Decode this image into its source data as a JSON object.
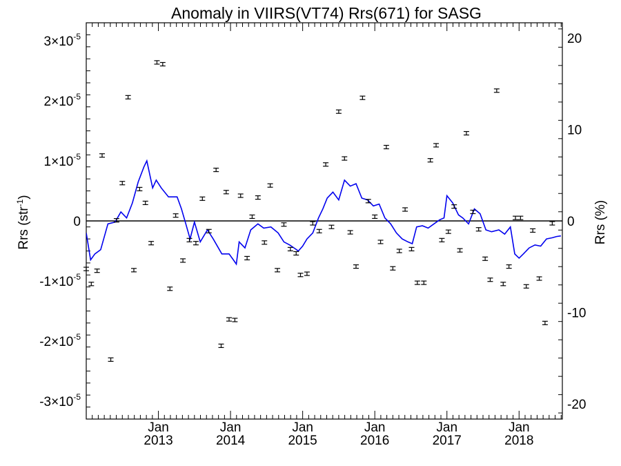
{
  "chart_data": {
    "type": "scatter",
    "title": "Anomaly in VIIRS(VT74) Rrs(671) for SASG",
    "ylabel": "Rrs (str",
    "ylabel_unit_sup": "-1",
    "ylabel_close": ")",
    "y2label": "Rrs (%)",
    "xlim": [
      2012.0,
      2018.6
    ],
    "ylim": [
      -3.3e-05,
      3.3e-05
    ],
    "y2lim": [
      -21.67,
      21.67
    ],
    "grid": false,
    "zero_line": true,
    "y_ticks": [
      {
        "value": -3e-05,
        "mant": "-3×10",
        "exp": "-5"
      },
      {
        "value": -2e-05,
        "mant": "-2×10",
        "exp": "-5"
      },
      {
        "value": -1e-05,
        "mant": "-1×10",
        "exp": "-5"
      },
      {
        "value": 0,
        "mant": "0",
        "exp": ""
      },
      {
        "value": 1e-05,
        "mant": "1×10",
        "exp": "-5"
      },
      {
        "value": 2e-05,
        "mant": "2×10",
        "exp": "-5"
      },
      {
        "value": 3e-05,
        "mant": "3×10",
        "exp": "-5"
      }
    ],
    "y2_ticks": [
      {
        "value": -20,
        "label": "-20"
      },
      {
        "value": -10,
        "label": "-10"
      },
      {
        "value": 0,
        "label": "0"
      },
      {
        "value": 10,
        "label": "10"
      },
      {
        "value": 20,
        "label": "20"
      }
    ],
    "x_ticks": [
      {
        "value": 2013.0,
        "month": "Jan",
        "year": "2013"
      },
      {
        "value": 2014.0,
        "month": "Jan",
        "year": "2014"
      },
      {
        "value": 2015.0,
        "month": "Jan",
        "year": "2015"
      },
      {
        "value": 2016.0,
        "month": "Jan",
        "year": "2016"
      },
      {
        "value": 2017.0,
        "month": "Jan",
        "year": "2017"
      },
      {
        "value": 2018.0,
        "month": "Jan",
        "year": "2018"
      }
    ],
    "x_minor_step": 0.0833333,
    "series": [
      {
        "style": "points_with_error_bars",
        "color": "#000000",
        "points": [
          {
            "x": 2012.0,
            "y": -8e-06
          },
          {
            "x": 2012.07,
            "y": -1.05e-05
          },
          {
            "x": 2012.15,
            "y": -8.3e-06
          },
          {
            "x": 2012.22,
            "y": 1.09e-05
          },
          {
            "x": 2012.34,
            "y": -2.31e-05
          },
          {
            "x": 2012.42,
            "y": 1e-07
          },
          {
            "x": 2012.5,
            "y": 6.3e-06
          },
          {
            "x": 2012.58,
            "y": 2.06e-05
          },
          {
            "x": 2012.66,
            "y": -8.2e-06
          },
          {
            "x": 2012.74,
            "y": 5.3e-06
          },
          {
            "x": 2012.82,
            "y": 3e-06
          },
          {
            "x": 2012.9,
            "y": -3.7e-06
          },
          {
            "x": 2012.98,
            "y": 2.64e-05
          },
          {
            "x": 2013.06,
            "y": 2.61e-05
          },
          {
            "x": 2013.16,
            "y": -1.13e-05
          },
          {
            "x": 2013.24,
            "y": 9e-07
          },
          {
            "x": 2013.34,
            "y": -6.6e-06
          },
          {
            "x": 2013.43,
            "y": -3.2e-06
          },
          {
            "x": 2013.52,
            "y": -3.7e-06
          },
          {
            "x": 2013.61,
            "y": 3.7e-06
          },
          {
            "x": 2013.7,
            "y": -1.7e-06
          },
          {
            "x": 2013.8,
            "y": 8.5e-06
          },
          {
            "x": 2013.87,
            "y": -2.08e-05
          },
          {
            "x": 2013.94,
            "y": 4.8e-06
          },
          {
            "x": 2013.98,
            "y": -1.64e-05
          },
          {
            "x": 2014.06,
            "y": -1.65e-05
          },
          {
            "x": 2014.14,
            "y": 4.2e-06
          },
          {
            "x": 2014.23,
            "y": -6.2e-06
          },
          {
            "x": 2014.3,
            "y": 7e-07
          },
          {
            "x": 2014.38,
            "y": 3.9e-06
          },
          {
            "x": 2014.47,
            "y": -3.6e-06
          },
          {
            "x": 2014.55,
            "y": 5.9e-06
          },
          {
            "x": 2014.65,
            "y": -8.2e-06
          },
          {
            "x": 2014.74,
            "y": -6e-07
          },
          {
            "x": 2014.83,
            "y": -4.7e-06
          },
          {
            "x": 2014.91,
            "y": -5.4e-06
          },
          {
            "x": 2014.97,
            "y": -9e-06
          },
          {
            "x": 2015.06,
            "y": -8.8e-06
          },
          {
            "x": 2015.14,
            "y": -4e-07
          },
          {
            "x": 2015.23,
            "y": -1.7e-06
          },
          {
            "x": 2015.32,
            "y": 9.4e-06
          },
          {
            "x": 2015.4,
            "y": -1e-06
          },
          {
            "x": 2015.5,
            "y": 1.82e-05
          },
          {
            "x": 2015.58,
            "y": 1.04e-05
          },
          {
            "x": 2015.66,
            "y": -1.9e-06
          },
          {
            "x": 2015.74,
            "y": -7.6e-06
          },
          {
            "x": 2015.83,
            "y": 2.05e-05
          },
          {
            "x": 2015.91,
            "y": 3.3e-06
          },
          {
            "x": 2016.0,
            "y": 7e-07
          },
          {
            "x": 2016.08,
            "y": -3.5e-06
          },
          {
            "x": 2016.16,
            "y": 1.23e-05
          },
          {
            "x": 2016.25,
            "y": -7.9e-06
          },
          {
            "x": 2016.34,
            "y": -5e-06
          },
          {
            "x": 2016.42,
            "y": 1.9e-06
          },
          {
            "x": 2016.51,
            "y": -4.7e-06
          },
          {
            "x": 2016.59,
            "y": -1.03e-05
          },
          {
            "x": 2016.68,
            "y": -1.03e-05
          },
          {
            "x": 2016.77,
            "y": 1.01e-05
          },
          {
            "x": 2016.85,
            "y": 1.26e-05
          },
          {
            "x": 2016.93,
            "y": -3.2e-06
          },
          {
            "x": 2017.02,
            "y": -1.8e-06
          },
          {
            "x": 2017.1,
            "y": 2.4e-06
          },
          {
            "x": 2017.18,
            "y": -4.9e-06
          },
          {
            "x": 2017.27,
            "y": 1.46e-05
          },
          {
            "x": 2017.36,
            "y": 1.5e-06
          },
          {
            "x": 2017.44,
            "y": -1.4e-06
          },
          {
            "x": 2017.53,
            "y": -6.3e-06
          },
          {
            "x": 2017.6,
            "y": -9.8e-06
          },
          {
            "x": 2017.69,
            "y": 2.17e-05
          },
          {
            "x": 2017.78,
            "y": -1.05e-05
          },
          {
            "x": 2017.86,
            "y": -7.6e-06
          },
          {
            "x": 2017.95,
            "y": 5e-07
          },
          {
            "x": 2018.02,
            "y": 5e-07
          },
          {
            "x": 2018.1,
            "y": -1.09e-05
          },
          {
            "x": 2018.19,
            "y": -1.6e-06
          },
          {
            "x": 2018.28,
            "y": -9.6e-06
          },
          {
            "x": 2018.36,
            "y": -1.7e-05
          },
          {
            "x": 2018.46,
            "y": -4e-07
          }
        ]
      },
      {
        "style": "line",
        "color": "#0000ee",
        "points": [
          {
            "x": 2012.0,
            "y": -2e-06
          },
          {
            "x": 2012.06,
            "y": -6.5e-06
          },
          {
            "x": 2012.12,
            "y": -5.5e-06
          },
          {
            "x": 2012.2,
            "y": -4.8e-06
          },
          {
            "x": 2012.3,
            "y": -5e-07
          },
          {
            "x": 2012.4,
            "y": -2e-07
          },
          {
            "x": 2012.48,
            "y": 1.5e-06
          },
          {
            "x": 2012.56,
            "y": 5e-07
          },
          {
            "x": 2012.64,
            "y": 3e-06
          },
          {
            "x": 2012.72,
            "y": 6.5e-06
          },
          {
            "x": 2012.8,
            "y": 9e-06
          },
          {
            "x": 2012.84,
            "y": 1e-05
          },
          {
            "x": 2012.92,
            "y": 5.5e-06
          },
          {
            "x": 2012.97,
            "y": 6.8e-06
          },
          {
            "x": 2013.04,
            "y": 5.5e-06
          },
          {
            "x": 2013.14,
            "y": 4e-06
          },
          {
            "x": 2013.26,
            "y": 4e-06
          },
          {
            "x": 2013.32,
            "y": 2e-06
          },
          {
            "x": 2013.38,
            "y": -5e-07
          },
          {
            "x": 2013.44,
            "y": -3e-06
          },
          {
            "x": 2013.5,
            "y": -2e-07
          },
          {
            "x": 2013.58,
            "y": -3.5e-06
          },
          {
            "x": 2013.68,
            "y": -1.5e-06
          },
          {
            "x": 2013.76,
            "y": -3e-06
          },
          {
            "x": 2013.88,
            "y": -5.5e-06
          },
          {
            "x": 2013.98,
            "y": -5.5e-06
          },
          {
            "x": 2014.04,
            "y": -6.5e-06
          },
          {
            "x": 2014.08,
            "y": -7.2e-06
          },
          {
            "x": 2014.12,
            "y": -3.5e-06
          },
          {
            "x": 2014.2,
            "y": -4.5e-06
          },
          {
            "x": 2014.28,
            "y": -1.5e-06
          },
          {
            "x": 2014.38,
            "y": -5e-07
          },
          {
            "x": 2014.46,
            "y": -1.2e-06
          },
          {
            "x": 2014.56,
            "y": -1e-06
          },
          {
            "x": 2014.66,
            "y": -2e-06
          },
          {
            "x": 2014.74,
            "y": -3.5e-06
          },
          {
            "x": 2014.82,
            "y": -4e-06
          },
          {
            "x": 2014.88,
            "y": -4.5e-06
          },
          {
            "x": 2014.94,
            "y": -5e-06
          },
          {
            "x": 2015.0,
            "y": -4.2e-06
          },
          {
            "x": 2015.06,
            "y": -3e-06
          },
          {
            "x": 2015.14,
            "y": -2e-06
          },
          {
            "x": 2015.22,
            "y": 5e-07
          },
          {
            "x": 2015.28,
            "y": 2e-06
          },
          {
            "x": 2015.34,
            "y": 3.8e-06
          },
          {
            "x": 2015.42,
            "y": 4.8e-06
          },
          {
            "x": 2015.5,
            "y": 3.5e-06
          },
          {
            "x": 2015.58,
            "y": 6.8e-06
          },
          {
            "x": 2015.66,
            "y": 5.8e-06
          },
          {
            "x": 2015.74,
            "y": 6.2e-06
          },
          {
            "x": 2015.82,
            "y": 3.8e-06
          },
          {
            "x": 2015.9,
            "y": 3.5e-06
          },
          {
            "x": 2015.98,
            "y": 2.5e-06
          },
          {
            "x": 2016.06,
            "y": 2.8e-06
          },
          {
            "x": 2016.14,
            "y": 5e-07
          },
          {
            "x": 2016.22,
            "y": -5e-07
          },
          {
            "x": 2016.3,
            "y": -2e-06
          },
          {
            "x": 2016.38,
            "y": -3e-06
          },
          {
            "x": 2016.46,
            "y": -3.5e-06
          },
          {
            "x": 2016.52,
            "y": -3.8e-06
          },
          {
            "x": 2016.58,
            "y": -1e-06
          },
          {
            "x": 2016.66,
            "y": -8e-07
          },
          {
            "x": 2016.74,
            "y": -1.2e-06
          },
          {
            "x": 2016.82,
            "y": -5e-07
          },
          {
            "x": 2016.9,
            "y": 2e-07
          },
          {
            "x": 2016.96,
            "y": 5e-07
          },
          {
            "x": 2017.0,
            "y": 4.2e-06
          },
          {
            "x": 2017.08,
            "y": 3e-06
          },
          {
            "x": 2017.16,
            "y": 1e-06
          },
          {
            "x": 2017.22,
            "y": 5e-07
          },
          {
            "x": 2017.3,
            "y": -5e-07
          },
          {
            "x": 2017.38,
            "y": 2e-06
          },
          {
            "x": 2017.46,
            "y": 1.2e-06
          },
          {
            "x": 2017.54,
            "y": -1.5e-06
          },
          {
            "x": 2017.62,
            "y": -1.8e-06
          },
          {
            "x": 2017.72,
            "y": -1.5e-06
          },
          {
            "x": 2017.8,
            "y": -2.2e-06
          },
          {
            "x": 2017.88,
            "y": -1e-06
          },
          {
            "x": 2017.94,
            "y": -5.5e-06
          },
          {
            "x": 2018.0,
            "y": -6.2e-06
          },
          {
            "x": 2018.06,
            "y": -5.5e-06
          },
          {
            "x": 2018.14,
            "y": -4.5e-06
          },
          {
            "x": 2018.22,
            "y": -4e-06
          },
          {
            "x": 2018.3,
            "y": -4.2e-06
          },
          {
            "x": 2018.38,
            "y": -3e-06
          },
          {
            "x": 2018.46,
            "y": -2.8e-06
          },
          {
            "x": 2018.52,
            "y": -2.6e-06
          },
          {
            "x": 2018.58,
            "y": -2.5e-06
          }
        ]
      }
    ]
  }
}
